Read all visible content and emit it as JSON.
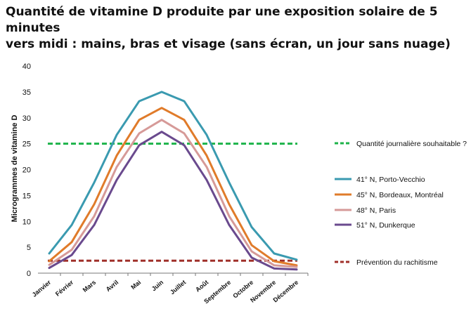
{
  "chart_data": {
    "type": "line",
    "title_lines": [
      "Quantité de vitamine D produite par une exposition solaire de 5 minutes",
      "vers midi : mains, bras et visage (sans écran, un jour sans nuage)"
    ],
    "xlabel": "",
    "ylabel": "Microgrammes de vitamine D",
    "ylim": [
      0,
      40
    ],
    "yticks": [
      0,
      5,
      10,
      15,
      20,
      25,
      30,
      35,
      40
    ],
    "grid": false,
    "legend_position": "right",
    "categories": [
      "Janvier",
      "Février",
      "Mars",
      "Avril",
      "Mai",
      "Juin",
      "Juillet",
      "Août",
      "Septembre",
      "Octobre",
      "Novembre",
      "Décembre"
    ],
    "series": [
      {
        "name": "41° N, Porto-Vecchio",
        "color": "#3a9ab0",
        "values": [
          3.8,
          9.3,
          17.5,
          26.7,
          33.2,
          35.0,
          33.2,
          26.7,
          17.5,
          8.9,
          3.8,
          2.6
        ]
      },
      {
        "name": "45° N, Bordeaux, Montréal",
        "color": "#e07b2a",
        "values": [
          2.3,
          6.0,
          13.3,
          22.7,
          29.6,
          31.9,
          29.6,
          22.7,
          13.3,
          5.4,
          2.3,
          1.5
        ]
      },
      {
        "name": "48° N, Paris",
        "color": "#d69a98",
        "values": [
          1.6,
          4.5,
          11.0,
          20.5,
          27.0,
          29.6,
          27.0,
          20.5,
          11.0,
          4.2,
          1.5,
          1.2
        ]
      },
      {
        "name": "51° N, Dunkerque",
        "color": "#6a4a8e",
        "values": [
          1.0,
          3.5,
          9.3,
          18.0,
          24.7,
          27.3,
          24.7,
          18.0,
          9.3,
          3.0,
          0.9,
          0.7
        ]
      }
    ],
    "reference_lines": [
      {
        "name": "Quantité journalière souhaitable ?",
        "color": "#1db34a",
        "value": 25
      },
      {
        "name": "Prévention du rachitisme",
        "color": "#a0302a",
        "value": 2.4
      }
    ]
  }
}
